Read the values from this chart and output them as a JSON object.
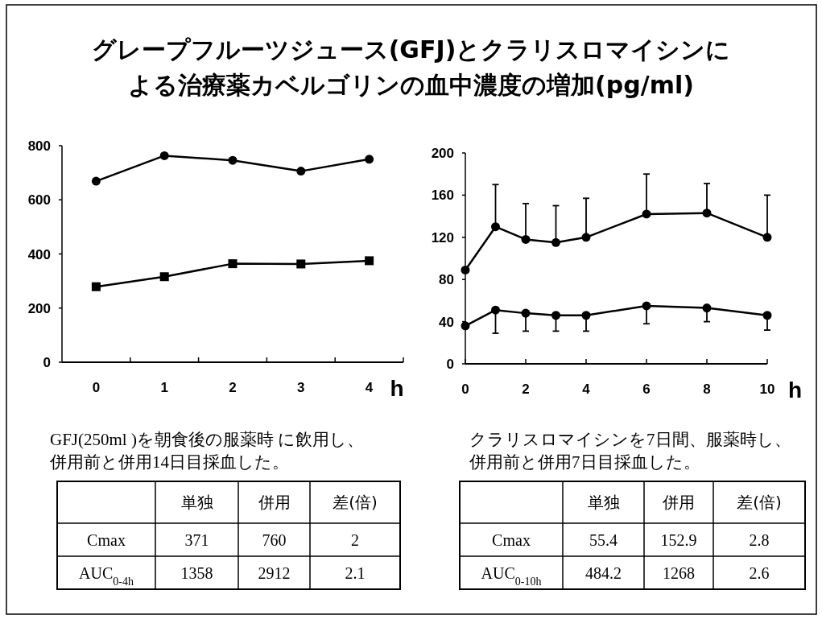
{
  "chart_data": [
    {
      "type": "line",
      "title": "グレープフルーツジュース(GFJ)とクラリスロマイシンに",
      "subtitle": "よる治療薬カベルゴリンの血中濃度の増加(pg/ml)",
      "xlabel": "h",
      "categories": [
        "0",
        "1",
        "2",
        "3",
        "4"
      ],
      "ylim": [
        0,
        800
      ],
      "yticks": [
        0,
        200,
        400,
        600,
        800
      ],
      "series": [
        {
          "color": "#000000",
          "marker": "circle",
          "values": [
            669,
            763,
            746,
            706,
            750
          ]
        },
        {
          "color": "#000000",
          "marker": "square",
          "values": [
            279,
            316,
            364,
            363,
            375
          ]
        }
      ],
      "annotations": [
        "GFJ(250ml )を朝食後の服薬時 に飲用し、",
        "併用前と併用14日目採血した。",
        "単独",
        "併用",
        "差(倍)",
        "Cmax",
        "371",
        "760",
        "2",
        "AUC$_{0-4h}$",
        "1358",
        "2912",
        "2.1"
      ]
    },
    {
      "type": "line",
      "xlabel": "h",
      "x": [
        0,
        1,
        2,
        3,
        4,
        6,
        8,
        10
      ],
      "xlim": [
        0,
        10
      ],
      "xticks": [
        0,
        2,
        4,
        6,
        8,
        10
      ],
      "ylim": [
        0,
        200
      ],
      "yticks": [
        0,
        40,
        80,
        120,
        160,
        200
      ],
      "marker": "circle",
      "series": [
        {
          "color": "#000000",
          "values": [
            89,
            130,
            118,
            115,
            120,
            142,
            143,
            120
          ],
          "errors": [
            null,
            [
              130,
              170
            ],
            [
              118,
              152
            ],
            [
              115,
              150
            ],
            [
              120,
              157
            ],
            [
              142,
              180
            ],
            [
              143,
              171
            ],
            [
              120,
              160
            ]
          ]
        },
        {
          "color": "#000000",
          "values": [
            36,
            51,
            48,
            46,
            46,
            55,
            53,
            46
          ],
          "errors": [
            null,
            [
              29,
              51
            ],
            [
              31,
              48
            ],
            [
              31,
              46
            ],
            [
              31,
              46
            ],
            [
              38,
              55
            ],
            [
              40,
              53
            ],
            [
              32,
              46
            ]
          ]
        }
      ],
      "annotations": [
        "クラリスロマイシンを7日間、服薬時し、",
        "併用前と併用7日目採血した。",
        "単独",
        "併用",
        "差(倍)",
        "Cmax",
        "55.4",
        "152.9",
        "2.8",
        "AUC$_{0-10h}$",
        "484.2",
        "1268",
        "2.6"
      ]
    }
  ]
}
